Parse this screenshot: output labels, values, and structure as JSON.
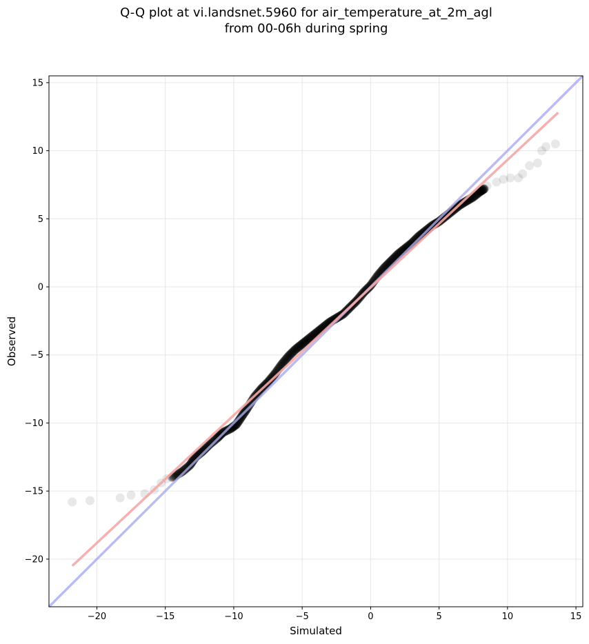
{
  "chart_data": {
    "type": "scatter",
    "title_lines": [
      "Q-Q plot at vi.landsnet.5960 for air_temperature_at_2m_agl",
      "from 00-06h during spring"
    ],
    "xlabel": "Simulated",
    "ylabel": "Observed",
    "xlim": [
      -23.5,
      15.5
    ],
    "ylim": [
      -23.5,
      15.5
    ],
    "xticks": [
      -20,
      -15,
      -10,
      -5,
      0,
      5,
      10,
      15
    ],
    "yticks": [
      -20,
      -15,
      -10,
      -5,
      0,
      5,
      10,
      15
    ],
    "grid": true,
    "reference_line": {
      "color": "#aaaaf0",
      "from": [
        -23.5,
        -23.5
      ],
      "to": [
        15.5,
        15.5
      ]
    },
    "fit_line": {
      "color": "#f4a7a7",
      "from": [
        -21.8,
        -20.5
      ],
      "to": [
        13.7,
        12.8
      ]
    },
    "faint_points": [
      [
        -21.8,
        -15.8
      ],
      [
        -20.5,
        -15.7
      ],
      [
        -18.3,
        -15.5
      ],
      [
        -17.5,
        -15.3
      ],
      [
        -16.5,
        -15.2
      ],
      [
        -15.8,
        -14.9
      ],
      [
        -15.3,
        -14.4
      ],
      [
        -14.9,
        -14.1
      ],
      [
        8.5,
        7.4
      ],
      [
        9.2,
        7.7
      ],
      [
        9.7,
        7.9
      ],
      [
        10.2,
        8.0
      ],
      [
        10.8,
        8.0
      ],
      [
        11.1,
        8.3
      ],
      [
        11.6,
        8.9
      ],
      [
        12.2,
        9.1
      ],
      [
        12.5,
        10.0
      ],
      [
        12.8,
        10.3
      ],
      [
        13.5,
        10.5
      ]
    ],
    "dense_points": [
      [
        -14.5,
        -14.0
      ],
      [
        -13.8,
        -13.6
      ],
      [
        -13.2,
        -13.1
      ],
      [
        -12.8,
        -12.5
      ],
      [
        -12.3,
        -12.1
      ],
      [
        -11.8,
        -11.6
      ],
      [
        -11.2,
        -11.1
      ],
      [
        -10.8,
        -10.7
      ],
      [
        -10.2,
        -10.4
      ],
      [
        -9.8,
        -10.1
      ],
      [
        -9.4,
        -9.5
      ],
      [
        -9.0,
        -8.9
      ],
      [
        -8.5,
        -8.1
      ],
      [
        -8.0,
        -7.5
      ],
      [
        -7.5,
        -7.0
      ],
      [
        -7.0,
        -6.4
      ],
      [
        -6.5,
        -5.7
      ],
      [
        -6.0,
        -5.1
      ],
      [
        -5.5,
        -4.6
      ],
      [
        -5.0,
        -4.2
      ],
      [
        -4.5,
        -3.8
      ],
      [
        -4.0,
        -3.4
      ],
      [
        -3.5,
        -3.0
      ],
      [
        -3.0,
        -2.6
      ],
      [
        -2.5,
        -2.3
      ],
      [
        -2.0,
        -2.0
      ],
      [
        -1.5,
        -1.5
      ],
      [
        -1.0,
        -1.0
      ],
      [
        -0.5,
        -0.4
      ],
      [
        0.0,
        0.1
      ],
      [
        0.5,
        0.8
      ],
      [
        1.0,
        1.4
      ],
      [
        1.5,
        1.9
      ],
      [
        2.0,
        2.4
      ],
      [
        2.5,
        2.8
      ],
      [
        3.0,
        3.2
      ],
      [
        3.5,
        3.7
      ],
      [
        4.0,
        4.1
      ],
      [
        4.5,
        4.5
      ],
      [
        5.0,
        4.8
      ],
      [
        5.5,
        5.2
      ],
      [
        6.0,
        5.6
      ],
      [
        6.5,
        6.0
      ],
      [
        7.0,
        6.3
      ],
      [
        7.5,
        6.6
      ],
      [
        8.0,
        7.0
      ],
      [
        8.3,
        7.2
      ]
    ]
  }
}
